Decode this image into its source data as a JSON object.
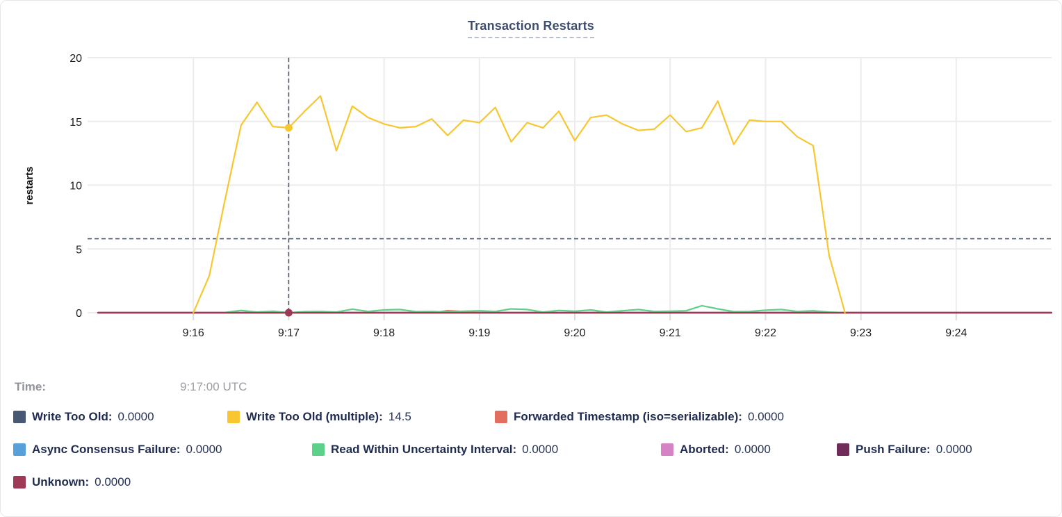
{
  "chart": {
    "title": "Transaction Restarts"
  },
  "tooltip": {
    "time_label": "Time:",
    "time_value": "9:17:00 UTC"
  },
  "legend": {
    "rows": [
      [
        {
          "series": "Write Too Old",
          "label": "Write Too Old:",
          "value": "0.0000"
        },
        {
          "series": "Write Too Old (multiple)",
          "label": "Write Too Old (multiple):",
          "value": "14.5"
        },
        {
          "series": "Forwarded Timestamp (iso=serializable)",
          "label": "Forwarded Timestamp (iso=serializable):",
          "value": "0.0000"
        }
      ],
      [
        {
          "series": "Async Consensus Failure",
          "label": "Async Consensus Failure:",
          "value": "0.0000"
        },
        {
          "series": "Read Within Uncertainty Interval",
          "label": "Read Within Uncertainty Interval:",
          "value": "0.0000"
        },
        {
          "series": "Aborted",
          "label": "Aborted:",
          "value": "0.0000"
        },
        {
          "series": "Push Failure",
          "label": "Push Failure:",
          "value": "0.0000"
        }
      ],
      [
        {
          "series": "Unknown",
          "label": "Unknown:",
          "value": "0.0000"
        }
      ]
    ]
  },
  "chart_data": {
    "type": "line",
    "title": "Transaction Restarts",
    "xlabel": "",
    "ylabel": "restarts",
    "ylim": [
      0,
      20
    ],
    "yticks": [
      0,
      5,
      10,
      15,
      20
    ],
    "x_domain": [
      "9:15:00",
      "9:25:00"
    ],
    "xticks": [
      "9:16",
      "9:17",
      "9:18",
      "9:19",
      "9:20",
      "9:21",
      "9:22",
      "9:23",
      "9:24"
    ],
    "grid": true,
    "legend_position": "bottom",
    "series": [
      {
        "name": "Write Too Old",
        "color": "#475872",
        "points": [
          [
            "9:15:00",
            0
          ],
          [
            "9:25:00",
            0
          ]
        ]
      },
      {
        "name": "Async Consensus Failure",
        "color": "#57A0DA",
        "points": [
          [
            "9:15:00",
            0
          ],
          [
            "9:25:00",
            0
          ]
        ]
      },
      {
        "name": "Aborted",
        "color": "#D683C5",
        "points": [
          [
            "9:15:00",
            0
          ],
          [
            "9:25:00",
            0
          ]
        ]
      },
      {
        "name": "Push Failure",
        "color": "#712B5B",
        "points": [
          [
            "9:15:00",
            0
          ],
          [
            "9:25:00",
            0
          ]
        ]
      },
      {
        "name": "Forwarded Timestamp (iso=serializable)",
        "color": "#E26E5F",
        "points": [
          [
            "9:15:00",
            0
          ],
          [
            "9:18:30",
            0
          ],
          [
            "9:18:40",
            0.15
          ],
          [
            "9:18:50",
            0.1
          ],
          [
            "9:19:00",
            0
          ],
          [
            "9:25:00",
            0
          ]
        ]
      },
      {
        "name": "Read Within Uncertainty Interval",
        "color": "#5DD189",
        "points": [
          [
            "9:16:20",
            0.02
          ],
          [
            "9:16:30",
            0.18
          ],
          [
            "9:16:40",
            0.05
          ],
          [
            "9:16:50",
            0.12
          ],
          [
            "9:17:00",
            0
          ],
          [
            "9:17:10",
            0.08
          ],
          [
            "9:17:20",
            0.1
          ],
          [
            "9:17:30",
            0.05
          ],
          [
            "9:17:40",
            0.28
          ],
          [
            "9:17:50",
            0.1
          ],
          [
            "9:18:00",
            0.22
          ],
          [
            "9:18:10",
            0.25
          ],
          [
            "9:18:20",
            0.08
          ],
          [
            "9:18:30",
            0.1
          ],
          [
            "9:18:40",
            0.05
          ],
          [
            "9:18:50",
            0.12
          ],
          [
            "9:19:00",
            0.15
          ],
          [
            "9:19:10",
            0.1
          ],
          [
            "9:19:20",
            0.3
          ],
          [
            "9:19:30",
            0.25
          ],
          [
            "9:19:40",
            0.05
          ],
          [
            "9:19:50",
            0.18
          ],
          [
            "9:20:00",
            0.12
          ],
          [
            "9:20:10",
            0.22
          ],
          [
            "9:20:20",
            0.05
          ],
          [
            "9:20:30",
            0.15
          ],
          [
            "9:20:40",
            0.25
          ],
          [
            "9:20:50",
            0.1
          ],
          [
            "9:21:00",
            0.12
          ],
          [
            "9:21:10",
            0.15
          ],
          [
            "9:21:20",
            0.55
          ],
          [
            "9:21:30",
            0.3
          ],
          [
            "9:21:40",
            0.08
          ],
          [
            "9:21:50",
            0.1
          ],
          [
            "9:22:00",
            0.2
          ],
          [
            "9:22:10",
            0.25
          ],
          [
            "9:22:20",
            0.1
          ],
          [
            "9:22:30",
            0.15
          ],
          [
            "9:22:40",
            0.05
          ],
          [
            "9:22:50",
            0
          ]
        ]
      },
      {
        "name": "Unknown",
        "color": "#9E3A56",
        "points": [
          [
            "9:15:00",
            0
          ],
          [
            "9:25:00",
            0
          ]
        ]
      },
      {
        "name": "Write Too Old (multiple)",
        "color": "#F8C62F",
        "points": [
          [
            "9:16:00",
            0
          ],
          [
            "9:16:10",
            2.9
          ],
          [
            "9:16:20",
            8.9
          ],
          [
            "9:16:30",
            14.7
          ],
          [
            "9:16:40",
            16.5
          ],
          [
            "9:16:50",
            14.6
          ],
          [
            "9:17:00",
            14.5
          ],
          [
            "9:17:10",
            15.8
          ],
          [
            "9:17:20",
            17.0
          ],
          [
            "9:17:30",
            12.7
          ],
          [
            "9:17:40",
            16.2
          ],
          [
            "9:17:50",
            15.3
          ],
          [
            "9:18:00",
            14.8
          ],
          [
            "9:18:10",
            14.5
          ],
          [
            "9:18:20",
            14.6
          ],
          [
            "9:18:30",
            15.2
          ],
          [
            "9:18:40",
            13.9
          ],
          [
            "9:18:50",
            15.1
          ],
          [
            "9:19:00",
            14.9
          ],
          [
            "9:19:10",
            16.1
          ],
          [
            "9:19:20",
            13.4
          ],
          [
            "9:19:30",
            14.9
          ],
          [
            "9:19:40",
            14.5
          ],
          [
            "9:19:50",
            15.8
          ],
          [
            "9:20:00",
            13.5
          ],
          [
            "9:20:10",
            15.3
          ],
          [
            "9:20:20",
            15.5
          ],
          [
            "9:20:30",
            14.8
          ],
          [
            "9:20:40",
            14.3
          ],
          [
            "9:20:50",
            14.4
          ],
          [
            "9:21:00",
            15.5
          ],
          [
            "9:21:10",
            14.2
          ],
          [
            "9:21:20",
            14.5
          ],
          [
            "9:21:30",
            16.6
          ],
          [
            "9:21:40",
            13.2
          ],
          [
            "9:21:50",
            15.1
          ],
          [
            "9:22:00",
            15.0
          ],
          [
            "9:22:10",
            15.0
          ],
          [
            "9:22:20",
            13.8
          ],
          [
            "9:22:30",
            13.1
          ],
          [
            "9:22:40",
            4.5
          ],
          [
            "9:22:50",
            0
          ]
        ]
      }
    ],
    "hover": {
      "time": "9:17:00",
      "hline_value": 5.8,
      "crosshair_color": "#475872",
      "points": [
        {
          "series": "Write Too Old (multiple)",
          "value": 14.5
        },
        {
          "series": "Unknown",
          "value": 0
        }
      ]
    }
  }
}
